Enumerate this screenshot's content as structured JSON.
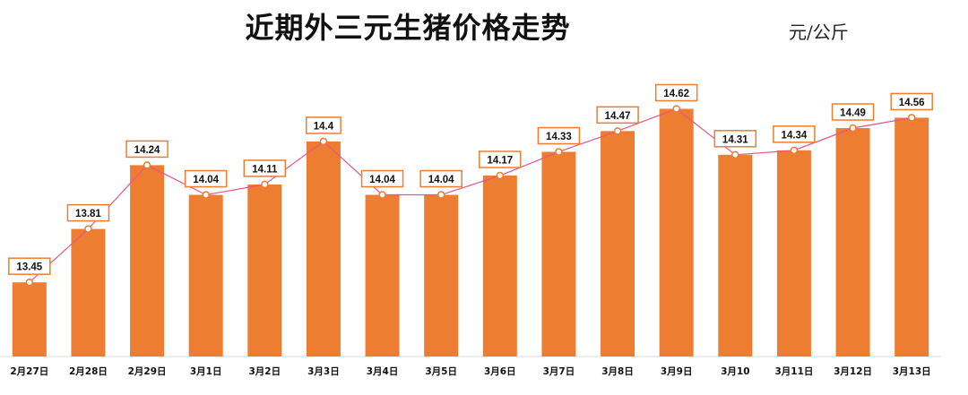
{
  "chart_data": {
    "type": "bar",
    "title": "近期外三元生猪价格走势",
    "unit": "元/公斤",
    "categories": [
      "2月27日",
      "2月28日",
      "2月29日",
      "3月1日",
      "3月2日",
      "3月3日",
      "3月4日",
      "3月5日",
      "3月6日",
      "3月7日",
      "3月8日",
      "3月9日",
      "3月10",
      "3月11日",
      "3月12日",
      "3月13日"
    ],
    "values": [
      13.45,
      13.81,
      14.24,
      14.04,
      14.11,
      14.4,
      14.04,
      14.04,
      14.17,
      14.33,
      14.47,
      14.62,
      14.31,
      14.34,
      14.49,
      14.56
    ],
    "data_labels": [
      "13.45",
      "13.81",
      "14.24",
      "14.04",
      "14.11",
      "14.4",
      "14.04",
      "14.04",
      "14.17",
      "14.33",
      "14.47",
      "14.62",
      "14.31",
      "14.34",
      "14.49",
      "14.56"
    ],
    "ylim": [
      12.95,
      14.78
    ],
    "bar_color": "#ED7D31",
    "line_color": "#E8558A",
    "label_border_color": "#ED7D31",
    "grid": false,
    "legend": "none",
    "overlay": "line connecting bar tops"
  }
}
